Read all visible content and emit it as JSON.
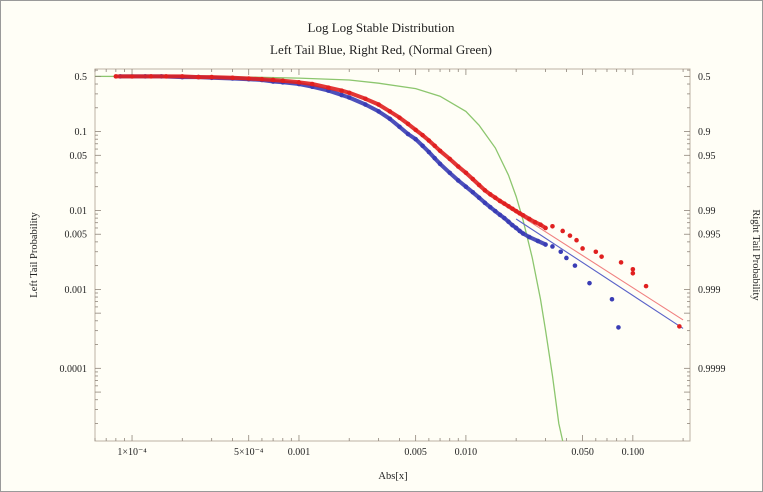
{
  "chart_data": {
    "type": "scatter",
    "title": "Log Log Stable Distribution",
    "subtitle": "Left Tail Blue, Right Red, (Normal Green)",
    "xlabel": "Abs[x]",
    "ylabel_left": "Left Tail Probability",
    "ylabel_right": "Right Tail Probability",
    "x_scale": "log",
    "y_scale": "log",
    "xlim": [
      6e-05,
      0.22
    ],
    "ylim": [
      1.2e-05,
      0.62
    ],
    "x_ticks": [
      {
        "value": 0.0001,
        "label": "1×10⁻⁴"
      },
      {
        "value": 0.0005,
        "label": "5×10⁻⁴"
      },
      {
        "value": 0.001,
        "label": "0.001"
      },
      {
        "value": 0.005,
        "label": "0.005"
      },
      {
        "value": 0.01,
        "label": "0.010"
      },
      {
        "value": 0.05,
        "label": "0.050"
      },
      {
        "value": 0.1,
        "label": "0.100"
      }
    ],
    "y_ticks_left": [
      {
        "value": 0.5,
        "label": "0.5"
      },
      {
        "value": 0.1,
        "label": "0.1"
      },
      {
        "value": 0.05,
        "label": "0.05"
      },
      {
        "value": 0.01,
        "label": "0.01"
      },
      {
        "value": 0.005,
        "label": "0.005"
      },
      {
        "value": 0.001,
        "label": "0.001"
      },
      {
        "value": 0.0001,
        "label": "0.0001"
      }
    ],
    "y_ticks_right": [
      {
        "value": 0.5,
        "label": "0.5"
      },
      {
        "value": 0.1,
        "label": "0.9"
      },
      {
        "value": 0.05,
        "label": "0.95"
      },
      {
        "value": 0.01,
        "label": "0.99"
      },
      {
        "value": 0.005,
        "label": "0.995"
      },
      {
        "value": 0.001,
        "label": "0.999"
      },
      {
        "value": 0.0001,
        "label": "0.9999"
      }
    ],
    "grid": false,
    "series": [
      {
        "color": "#3a3db5",
        "points": [
          [
            8.5e-05,
            0.5
          ],
          [
            0.0001,
            0.5
          ],
          [
            0.00012,
            0.5
          ],
          [
            0.00015,
            0.5
          ],
          [
            0.0002,
            0.49
          ],
          [
            0.00025,
            0.49
          ],
          [
            0.0003,
            0.48
          ],
          [
            0.0004,
            0.47
          ],
          [
            0.0005,
            0.46
          ],
          [
            0.0006,
            0.45
          ],
          [
            0.0007,
            0.43
          ],
          [
            0.0008,
            0.42
          ],
          [
            0.001,
            0.4
          ],
          [
            0.0012,
            0.37
          ],
          [
            0.0015,
            0.33
          ],
          [
            0.0018,
            0.29
          ],
          [
            0.002,
            0.27
          ],
          [
            0.0025,
            0.22
          ],
          [
            0.003,
            0.18
          ],
          [
            0.0035,
            0.145
          ],
          [
            0.004,
            0.115
          ],
          [
            0.0045,
            0.093
          ],
          [
            0.005,
            0.08
          ],
          [
            0.0055,
            0.066
          ],
          [
            0.006,
            0.055
          ],
          [
            0.0065,
            0.046
          ],
          [
            0.007,
            0.039
          ],
          [
            0.008,
            0.03
          ],
          [
            0.009,
            0.024
          ],
          [
            0.01,
            0.02
          ],
          [
            0.011,
            0.017
          ],
          [
            0.012,
            0.0145
          ],
          [
            0.013,
            0.0125
          ],
          [
            0.014,
            0.011
          ],
          [
            0.015,
            0.0098
          ],
          [
            0.016,
            0.0088
          ],
          [
            0.017,
            0.008
          ],
          [
            0.018,
            0.0072
          ],
          [
            0.019,
            0.0065
          ],
          [
            0.02,
            0.006
          ],
          [
            0.021,
            0.0055
          ],
          [
            0.022,
            0.0051
          ],
          [
            0.024,
            0.0046
          ],
          [
            0.027,
            0.0041
          ],
          [
            0.03,
            0.0037
          ],
          [
            0.033,
            0.0035
          ],
          [
            0.037,
            0.003
          ],
          [
            0.04,
            0.0025
          ],
          [
            0.045,
            0.002
          ],
          [
            0.055,
            0.0012
          ],
          [
            0.075,
            0.00075
          ],
          [
            0.082,
            0.00033
          ]
        ]
      },
      {
        "color": "#e02020",
        "points": [
          [
            8e-05,
            0.5
          ],
          [
            0.0001,
            0.5
          ],
          [
            0.00013,
            0.5
          ],
          [
            0.00016,
            0.5
          ],
          [
            0.0002,
            0.5
          ],
          [
            0.00025,
            0.49
          ],
          [
            0.0003,
            0.49
          ],
          [
            0.0004,
            0.48
          ],
          [
            0.0005,
            0.47
          ],
          [
            0.0006,
            0.46
          ],
          [
            0.0007,
            0.45
          ],
          [
            0.0008,
            0.44
          ],
          [
            0.001,
            0.42
          ],
          [
            0.0012,
            0.4
          ],
          [
            0.0015,
            0.36
          ],
          [
            0.0018,
            0.33
          ],
          [
            0.002,
            0.31
          ],
          [
            0.0025,
            0.26
          ],
          [
            0.003,
            0.22
          ],
          [
            0.0035,
            0.18
          ],
          [
            0.004,
            0.15
          ],
          [
            0.0045,
            0.125
          ],
          [
            0.005,
            0.105
          ],
          [
            0.0055,
            0.09
          ],
          [
            0.006,
            0.077
          ],
          [
            0.0065,
            0.066
          ],
          [
            0.007,
            0.057
          ],
          [
            0.008,
            0.045
          ],
          [
            0.009,
            0.036
          ],
          [
            0.01,
            0.03
          ],
          [
            0.011,
            0.025
          ],
          [
            0.012,
            0.021
          ],
          [
            0.013,
            0.018
          ],
          [
            0.014,
            0.016
          ],
          [
            0.015,
            0.0145
          ],
          [
            0.016,
            0.0132
          ],
          [
            0.017,
            0.0122
          ],
          [
            0.018,
            0.0113
          ],
          [
            0.019,
            0.0105
          ],
          [
            0.02,
            0.0098
          ],
          [
            0.021,
            0.0092
          ],
          [
            0.022,
            0.0087
          ],
          [
            0.024,
            0.0078
          ],
          [
            0.026,
            0.0071
          ],
          [
            0.028,
            0.0066
          ],
          [
            0.03,
            0.006
          ],
          [
            0.033,
            0.0063
          ],
          [
            0.038,
            0.0055
          ],
          [
            0.042,
            0.0048
          ],
          [
            0.046,
            0.0042
          ],
          [
            0.05,
            0.0033
          ],
          [
            0.06,
            0.003
          ],
          [
            0.065,
            0.0026
          ],
          [
            0.085,
            0.0022
          ],
          [
            0.1,
            0.0018
          ],
          [
            0.1,
            0.0016
          ],
          [
            0.12,
            0.0011
          ],
          [
            0.19,
            0.00034
          ]
        ]
      }
    ],
    "fit_lines": [
      {
        "color": "#5a62c8",
        "from": [
          0.02,
          0.0078
        ],
        "to": [
          0.2,
          0.00032
        ]
      },
      {
        "color": "#f08080",
        "from": [
          0.02,
          0.0093
        ],
        "to": [
          0.2,
          0.00041
        ]
      }
    ],
    "normal_curve": {
      "color": "#8cc66e",
      "points": [
        [
          6e-05,
          0.5
        ],
        [
          0.0002,
          0.498
        ],
        [
          0.0005,
          0.49
        ],
        [
          0.001,
          0.475
        ],
        [
          0.002,
          0.45
        ],
        [
          0.003,
          0.41
        ],
        [
          0.005,
          0.35
        ],
        [
          0.007,
          0.28
        ],
        [
          0.01,
          0.18
        ],
        [
          0.012,
          0.12
        ],
        [
          0.015,
          0.062
        ],
        [
          0.018,
          0.028
        ],
        [
          0.02,
          0.015
        ],
        [
          0.022,
          0.0075
        ],
        [
          0.025,
          0.0025
        ],
        [
          0.028,
          0.00075
        ],
        [
          0.03,
          0.0003
        ],
        [
          0.033,
          8e-05
        ],
        [
          0.036,
          2e-05
        ],
        [
          0.038,
          1.2e-05
        ]
      ]
    }
  }
}
